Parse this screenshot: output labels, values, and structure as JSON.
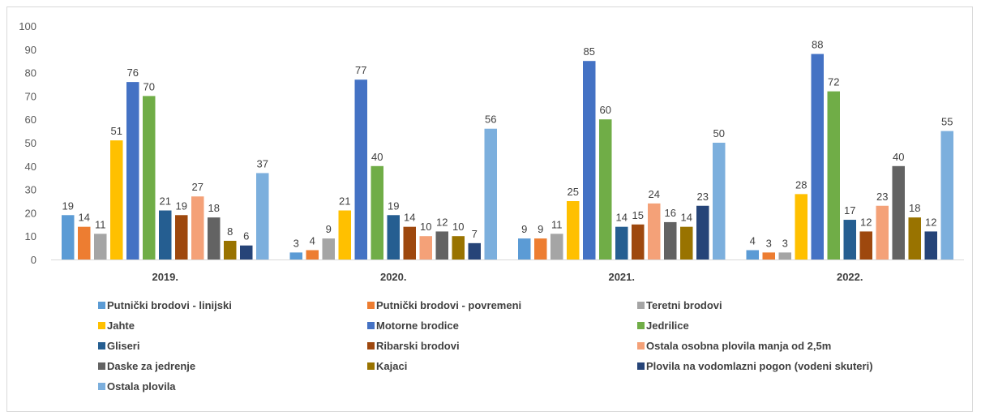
{
  "chart_data": {
    "type": "bar",
    "categories": [
      "2019.",
      "2020.",
      "2021.",
      "2022."
    ],
    "ylim": [
      0,
      100
    ],
    "yticks": [
      0,
      10,
      20,
      30,
      40,
      50,
      60,
      70,
      80,
      90,
      100
    ],
    "grid": "none",
    "legend_position": "bottom",
    "series": [
      {
        "name": "Putnički brodovi - linijski",
        "color": "#5b9bd5",
        "values": [
          19,
          3,
          9,
          4
        ]
      },
      {
        "name": "Putnički brodovi - povremeni",
        "color": "#ed7d31",
        "values": [
          14,
          4,
          9,
          3
        ]
      },
      {
        "name": "Teretni brodovi",
        "color": "#a5a5a5",
        "values": [
          11,
          9,
          11,
          3
        ]
      },
      {
        "name": "Jahte",
        "color": "#ffc000",
        "values": [
          51,
          21,
          25,
          28
        ]
      },
      {
        "name": "Motorne brodice",
        "color": "#4472c4",
        "values": [
          76,
          77,
          85,
          88
        ]
      },
      {
        "name": "Jedrilice",
        "color": "#70ad47",
        "values": [
          70,
          40,
          60,
          72
        ]
      },
      {
        "name": "Gliseri",
        "color": "#255e91",
        "values": [
          21,
          19,
          14,
          17
        ]
      },
      {
        "name": "Ribarski brodovi",
        "color": "#9e480e",
        "values": [
          19,
          14,
          15,
          12
        ]
      },
      {
        "name": "Ostala osobna plovila manja od 2,5m",
        "color": "#f4a178",
        "values": [
          27,
          10,
          24,
          23
        ]
      },
      {
        "name": "Daske za jedrenje",
        "color": "#636363",
        "values": [
          18,
          12,
          16,
          40
        ]
      },
      {
        "name": "Kajaci",
        "color": "#997300",
        "values": [
          8,
          10,
          14,
          18
        ]
      },
      {
        "name": "Plovila na vodomlazni pogon (vodeni skuteri)",
        "color": "#264478",
        "values": [
          6,
          7,
          23,
          12
        ]
      },
      {
        "name": "Ostala plovila",
        "color": "#7cafdd",
        "values": [
          37,
          56,
          50,
          55
        ]
      }
    ]
  }
}
